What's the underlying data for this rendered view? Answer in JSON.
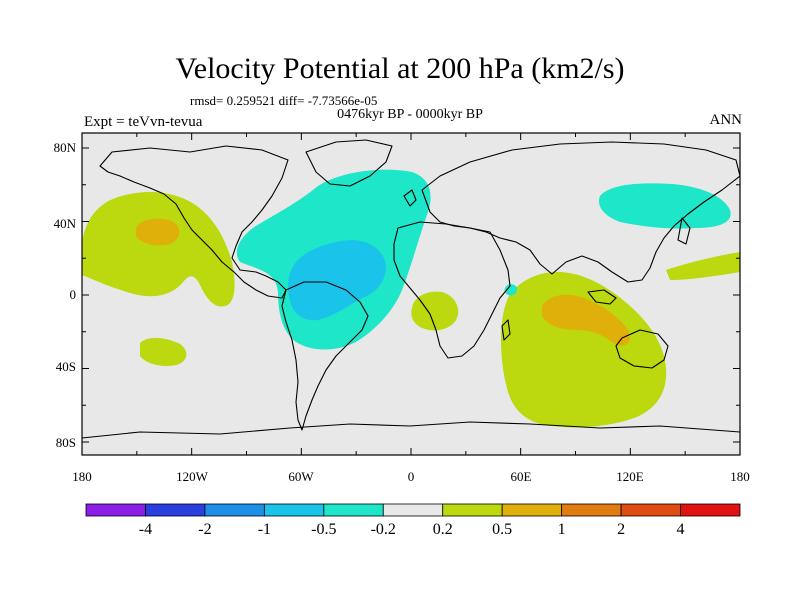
{
  "title": "Velocity Potential at 200 hPa (km2/s)",
  "stats_line": "rmsd= 0.259521  diff= -7.73566e-05",
  "period": "0476kyr BP - 0000kyr BP",
  "experiment": "Expt = teVvn-tevua",
  "season": "ANN",
  "axes": {
    "lat_ticks": [
      "80N",
      "40N",
      "0",
      "40S",
      "80S"
    ],
    "lon_ticks": [
      "180",
      "120W",
      "60W",
      "0",
      "60E",
      "120E",
      "180"
    ]
  },
  "colorbar": {
    "levels": [
      "-4",
      "-2",
      "-1",
      "-0.5",
      "-0.2",
      "0.2",
      "0.5",
      "1",
      "2",
      "4"
    ],
    "colors": [
      "#8c1ee6",
      "#2a3fe0",
      "#1e8ee6",
      "#19c3ea",
      "#1ee6c8",
      "#e8e8e8",
      "#bcd80e",
      "#e0b00a",
      "#e07c12",
      "#e04c12",
      "#e01212"
    ]
  },
  "colors": {
    "ocean_background": "#e8e8e8",
    "neg_light": "#1ee6c8",
    "neg_medium": "#19c3ea",
    "pos_light": "#bcd80e",
    "pos_medium": "#e0b00a"
  }
}
